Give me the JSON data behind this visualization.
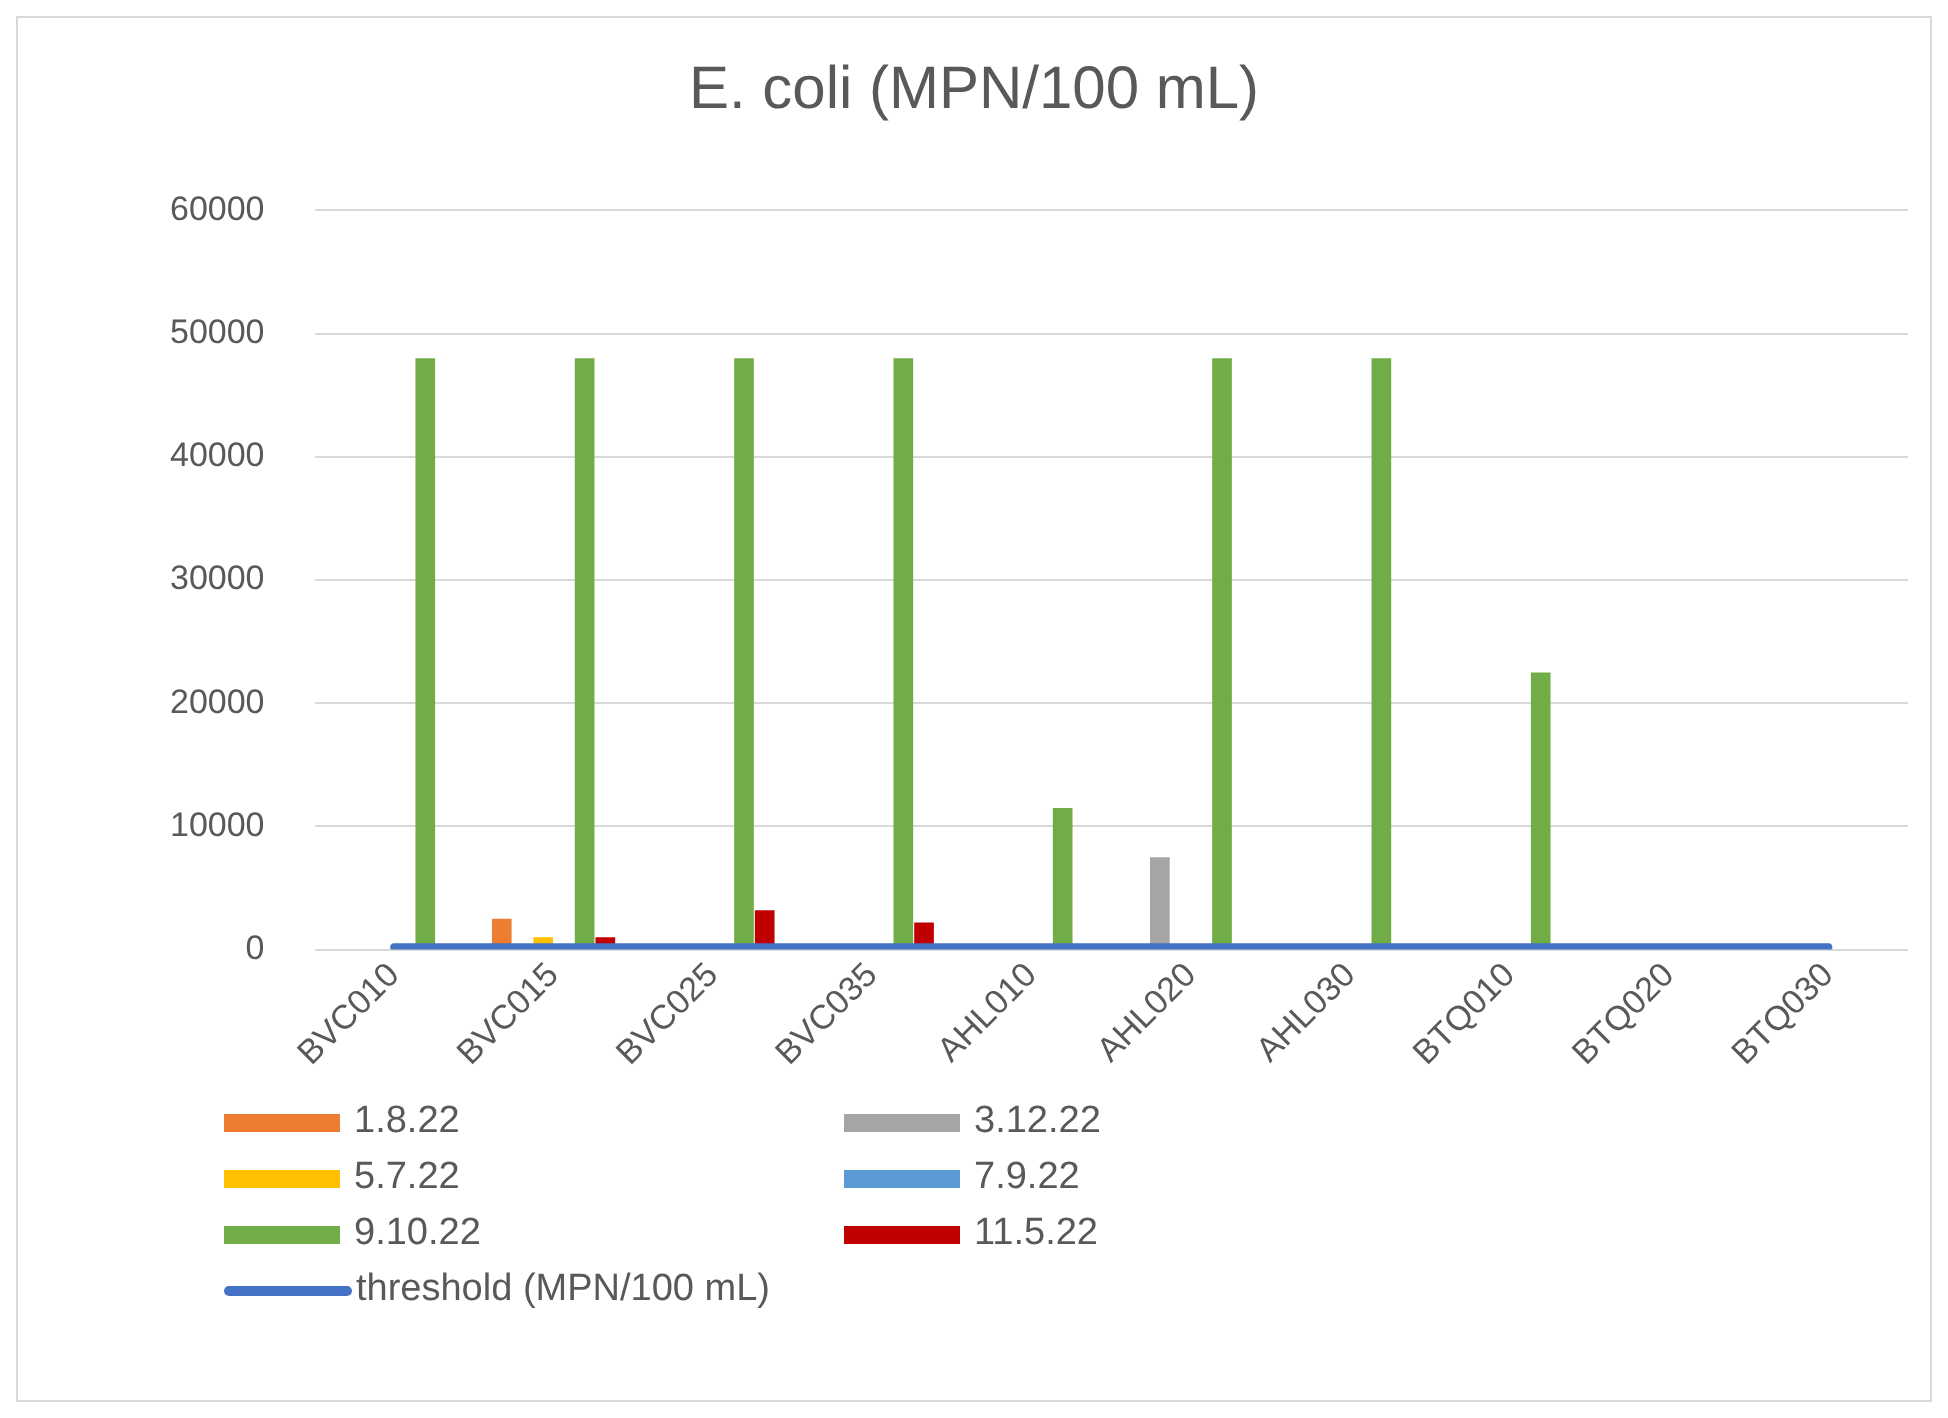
{
  "chart_data": {
    "type": "bar",
    "title": "E. coli (MPN/100 mL)",
    "categories": [
      "BVC010",
      "BVC015",
      "BVC025",
      "BVC035",
      "AHL010",
      "AHL020",
      "AHL030",
      "BTQ010",
      "BTQ020",
      "BTQ030"
    ],
    "series": [
      {
        "name": "1.8.22",
        "color": "#ed7d31",
        "values": [
          null,
          2500,
          null,
          null,
          null,
          null,
          null,
          null,
          null,
          null
        ]
      },
      {
        "name": "3.12.22",
        "color": "#a5a5a5",
        "values": [
          null,
          null,
          null,
          null,
          null,
          7500,
          null,
          null,
          null,
          null
        ]
      },
      {
        "name": "5.7.22",
        "color": "#ffc000",
        "values": [
          null,
          1000,
          null,
          null,
          null,
          null,
          null,
          null,
          null,
          null
        ]
      },
      {
        "name": "7.9.22",
        "color": "#5b9bd5",
        "values": [
          null,
          null,
          null,
          null,
          null,
          null,
          null,
          null,
          null,
          null
        ]
      },
      {
        "name": "9.10.22",
        "color": "#70ad47",
        "values": [
          48000,
          48000,
          48000,
          48000,
          11500,
          48000,
          48000,
          22500,
          null,
          null
        ]
      },
      {
        "name": "11.5.22",
        "color": "#c00000",
        "values": [
          null,
          1000,
          3200,
          2200,
          null,
          null,
          null,
          null,
          null,
          null
        ]
      },
      {
        "name": "threshold (MPN/100 mL)",
        "type": "line",
        "color": "#4472c4",
        "values": [
          200,
          200,
          200,
          200,
          200,
          200,
          200,
          200,
          200,
          200
        ]
      }
    ],
    "ylim": [
      0,
      60000
    ],
    "yticks": [
      0,
      10000,
      20000,
      30000,
      40000,
      50000,
      60000
    ],
    "grid": "y",
    "legend": "bottom",
    "marker": "none"
  }
}
